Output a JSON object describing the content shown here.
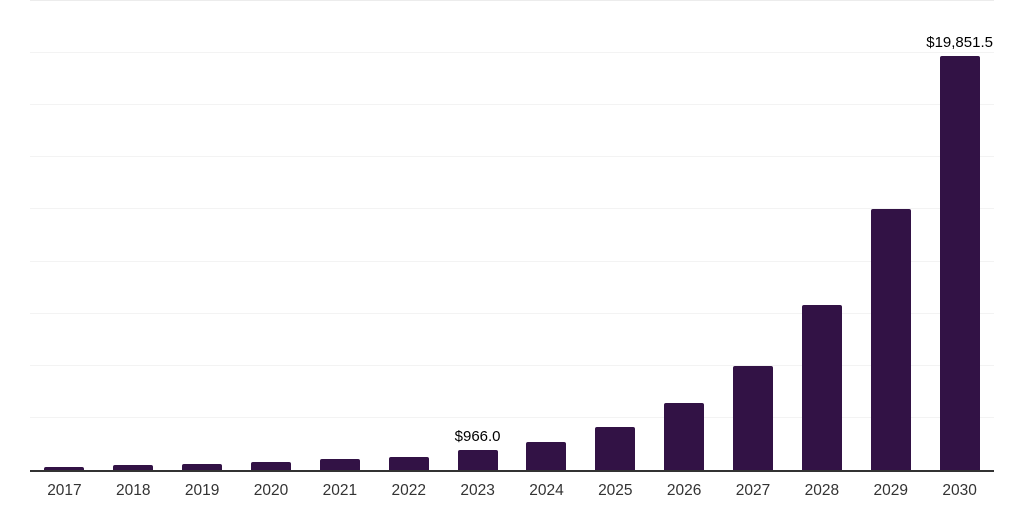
{
  "chart_data": {
    "type": "bar",
    "title": "",
    "xlabel": "",
    "ylabel": "",
    "categories": [
      "2017",
      "2018",
      "2019",
      "2020",
      "2021",
      "2022",
      "2023",
      "2024",
      "2025",
      "2026",
      "2027",
      "2028",
      "2029",
      "2030"
    ],
    "values": [
      150,
      240,
      290,
      375,
      515,
      645,
      966.0,
      1355,
      2060,
      3220,
      4990,
      7940,
      12500,
      19851.5
    ],
    "data_labels": [
      "",
      "",
      "",
      "",
      "",
      "",
      "$966.0",
      "",
      "",
      "",
      "",
      "",
      "",
      "$19,851.5"
    ],
    "ylim": [
      0,
      22500
    ],
    "gridline_interval": 2500,
    "grid": true,
    "legend": false,
    "y_axis_tick_labels_visible": false,
    "colors": {
      "bar": "#321245",
      "axis_line": "#333333",
      "gridline": "#f3f3f3",
      "top_gridline": "#ececec",
      "tick_label": "#333333",
      "data_label": "#000000",
      "background": "#ffffff"
    }
  }
}
